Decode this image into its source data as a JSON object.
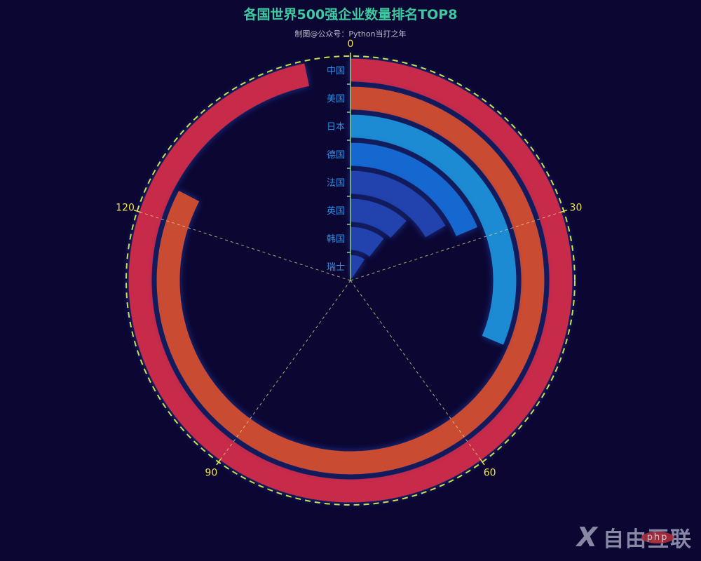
{
  "header": {
    "title": "各国世界500强企业数量排名TOP8",
    "subtitle": "制图@公众号：Python当打之年"
  },
  "watermark": {
    "logo": "X",
    "text": "自由互联",
    "badge": "php"
  },
  "chart_data": {
    "type": "polar-bar",
    "title": "各国世界500强企业数量排名TOP8",
    "subtitle": "制图@公众号：Python当打之年",
    "categories": [
      "中国",
      "美国",
      "日本",
      "德国",
      "法国",
      "英国",
      "韩国",
      "瑞士"
    ],
    "values": [
      145,
      124,
      47,
      28,
      25,
      18,
      16,
      14
    ],
    "colors": [
      "#c8294a",
      "#c94b33",
      "#1f8bd3",
      "#1467d1",
      "#2143ae",
      "#2143ae",
      "#2143ae",
      "#2143ae"
    ],
    "angle_axis": {
      "min": 0,
      "max": 150,
      "ticks": [
        0,
        30,
        60,
        90,
        120
      ],
      "tick_color": "#f0e44a",
      "line_style": "dashed",
      "line_color": "#c8e04a"
    },
    "radius_axis": {
      "labels": [
        "中国",
        "美国",
        "日本",
        "德国",
        "法国",
        "英国",
        "韩国",
        "瑞士"
      ],
      "label_color": "#2f8de0",
      "line_color": "#8fd08a"
    },
    "background": "#0c0633",
    "legend": null
  }
}
